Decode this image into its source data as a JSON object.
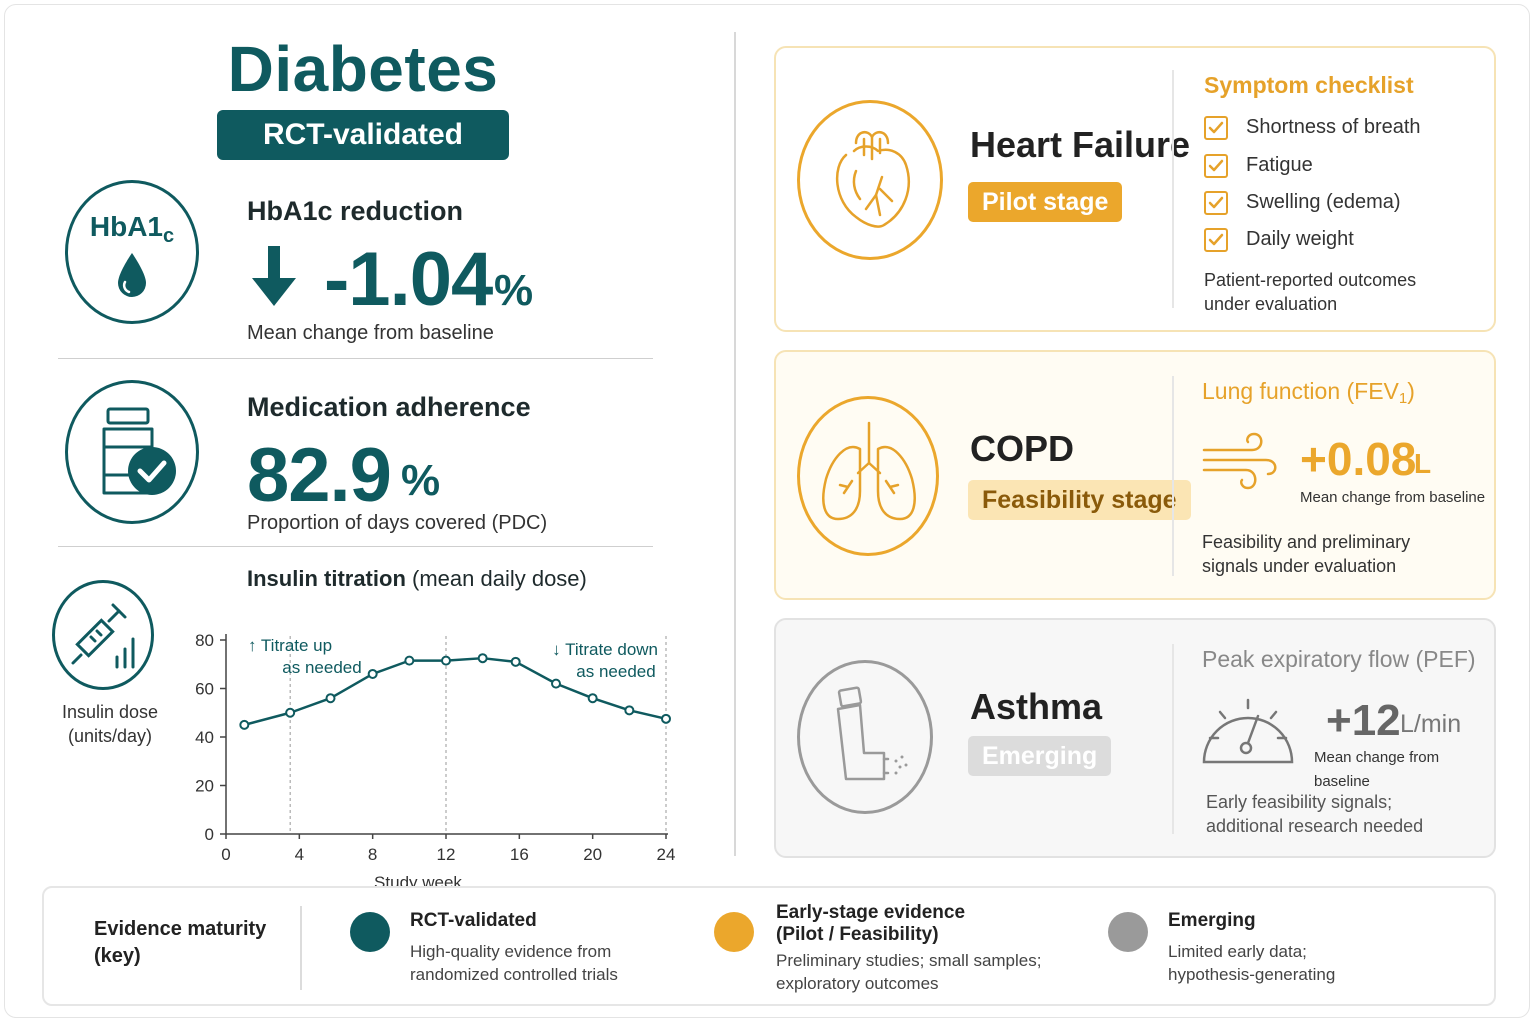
{
  "diabetes": {
    "title": "Diabetes",
    "badge": "RCT-validated",
    "hba1c": {
      "icon_text": "HbA1",
      "icon_sub": "c",
      "title": "HbA1c reduction",
      "value": "-1.04",
      "unit": "%",
      "caption": "Mean change from baseline"
    },
    "adherence": {
      "title": "Medication adherence",
      "value": "82.9",
      "unit": "%",
      "caption": "Proportion of days covered (PDC)"
    },
    "insulin": {
      "title_bold": "Insulin titration",
      "title_rest": " (mean daily dose)",
      "icon_label_1": "Insulin dose",
      "icon_label_2": "(units/day)"
    }
  },
  "chart_data": {
    "type": "line",
    "title": "Insulin titration (mean daily dose)",
    "xlabel": "Study week",
    "ylabel": "",
    "xlim": [
      0,
      24
    ],
    "ylim": [
      0,
      80
    ],
    "x_ticks": [
      0,
      4,
      8,
      12,
      16,
      20,
      24
    ],
    "y_ticks": [
      0,
      20,
      40,
      60,
      80
    ],
    "grid": false,
    "reference_lines_x": [
      3.5,
      12,
      24
    ],
    "series": [
      {
        "x": [
          1,
          3.5,
          5.7,
          8,
          10,
          12,
          14,
          15.8,
          18,
          20,
          22,
          24
        ],
        "values": [
          45,
          50,
          56,
          66,
          71.5,
          71.5,
          72.5,
          71,
          62,
          56,
          51,
          47.5
        ],
        "color": "#0f5a5f"
      }
    ],
    "annotations": [
      {
        "arrow": "↑",
        "line1": "Titrate up",
        "line2": "as needed"
      },
      {
        "arrow": "↓",
        "line1": "Titrate down",
        "line2": "as needed"
      }
    ]
  },
  "heart_failure": {
    "name": "Heart Failure",
    "stage": "Pilot stage",
    "checklist_title": "Symptom checklist",
    "checklist": [
      "Shortness of breath",
      "Fatigue",
      "Swelling (edema)",
      "Daily weight"
    ],
    "note_1": "Patient-reported outcomes",
    "note_2": "under evaluation"
  },
  "copd": {
    "name": "COPD",
    "stage": "Feasibility stage",
    "metric_title": "Lung function (FEV",
    "metric_title_sub": "1",
    "metric_title_end": ")",
    "value": "+0.08",
    "unit": "L",
    "caption": "Mean change from baseline",
    "note_1": "Feasibility and preliminary",
    "note_2": "signals under evaluation"
  },
  "asthma": {
    "name": "Asthma",
    "stage": "Emerging",
    "metric_title": "Peak expiratory flow (PEF)",
    "value": "+12",
    "unit": "L/min",
    "caption": "Mean change from baseline",
    "note_1": "Early feasibility signals;",
    "note_2": "additional research needed"
  },
  "legend": {
    "title_1": "Evidence maturity",
    "title_2": "(key)",
    "items": [
      {
        "title_1": "RCT-validated",
        "title_2": "",
        "desc_1": "High-quality evidence from",
        "desc_2": "randomized controlled trials",
        "color": "#0f5a5f"
      },
      {
        "title_1": "Early-stage evidence",
        "title_2": "(Pilot / Feasibility)",
        "desc_1": "Preliminary studies; small samples;",
        "desc_2": "exploratory outcomes",
        "color": "#eba72c"
      },
      {
        "title_1": "Emerging",
        "title_2": "",
        "desc_1": "Limited early data;",
        "desc_2": "hypothesis-generating",
        "color": "#9a9a9a"
      }
    ]
  },
  "colors": {
    "teal": "#0f5a5f",
    "orange": "#eba72c",
    "gray": "#9a9a9a"
  }
}
